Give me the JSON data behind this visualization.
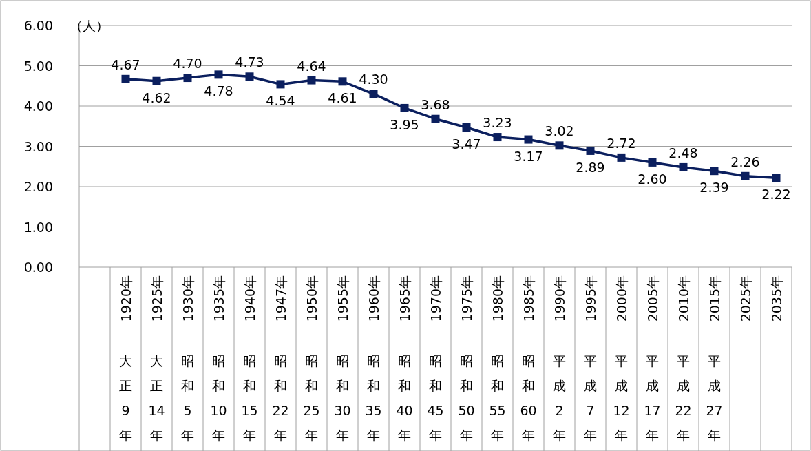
{
  "chart_data": {
    "type": "line",
    "ylabel": "（人）",
    "categories": [
      "1920年大正9年",
      "1925年大正14年",
      "1930年昭和5年",
      "1935年昭和10年",
      "1940年昭和15年",
      "1947年昭和22年",
      "1950年昭和25年",
      "1955年昭和30年",
      "1960年昭和35年",
      "1965年昭和40年",
      "1970年昭和45年",
      "1975年昭和50年",
      "1980年昭和55年",
      "1985年昭和60年",
      "1990年平成2年",
      "1995年平成7年",
      "2000年平成12年",
      "2005年平成17年",
      "2010年平成22年",
      "2015年平成27年",
      "2025年",
      "2035年"
    ],
    "series": [
      {
        "color": "#0b1f5e",
        "values": [
          4.67,
          4.62,
          4.7,
          4.78,
          4.73,
          4.54,
          4.64,
          4.61,
          4.3,
          3.95,
          3.68,
          3.47,
          3.23,
          3.17,
          3.02,
          2.89,
          2.72,
          2.6,
          2.48,
          2.39,
          2.26,
          2.22
        ],
        "value_labels": [
          "4.67",
          "4.62",
          "4.70",
          "4.78",
          "4.73",
          "4.54",
          "4.64",
          "4.61",
          "4.30",
          "3.95",
          "3.68",
          "3.47",
          "3.23",
          "3.17",
          "3.02",
          "2.89",
          "2.72",
          "2.60",
          "2.48",
          "2.39",
          "2.26",
          "2.22"
        ]
      }
    ],
    "ylim": [
      0,
      6
    ],
    "yticks": [
      {
        "value": 0,
        "label": "0.00"
      },
      {
        "value": 1,
        "label": "1.00"
      },
      {
        "value": 2,
        "label": "2.00"
      },
      {
        "value": 3,
        "label": "3.00"
      },
      {
        "value": 4,
        "label": "4.00"
      },
      {
        "value": 5,
        "label": "5.00"
      },
      {
        "value": 6,
        "label": "6.00"
      }
    ],
    "grid": "y",
    "marker": "square",
    "line_style": "solid"
  }
}
